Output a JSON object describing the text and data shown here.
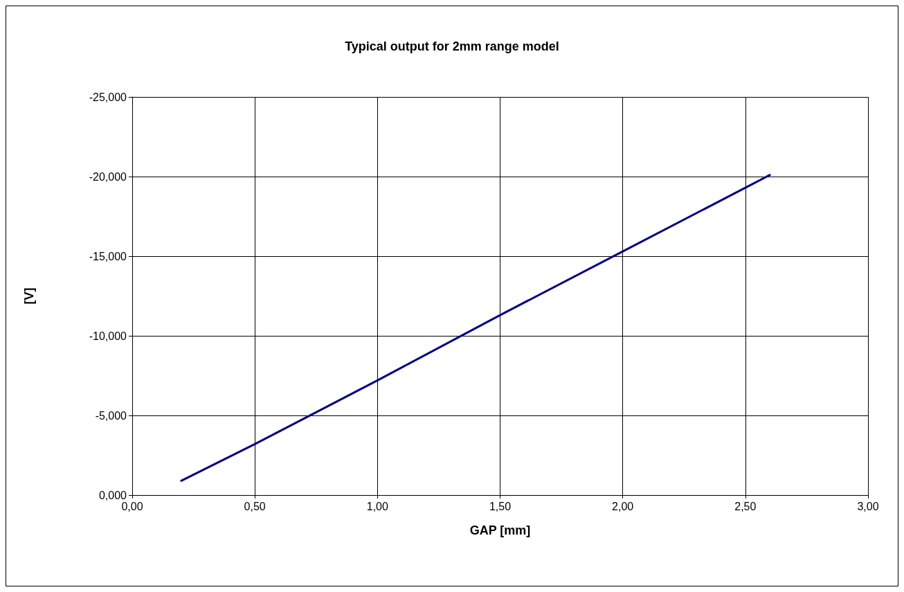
{
  "chart_data": {
    "type": "line",
    "title": "Typical output for 2mm range model",
    "xlabel": "GAP [mm]",
    "ylabel": "[V]",
    "x": [
      0.2,
      0.5,
      1.0,
      1.5,
      2.0,
      2.5,
      2.6
    ],
    "series": [
      {
        "color": "#000080",
        "values": [
          -0.9,
          -3.2,
          -7.2,
          -11.3,
          -15.3,
          -19.3,
          -20.1
        ]
      }
    ],
    "xlim": [
      0,
      3
    ],
    "xticks": [
      {
        "value": 0,
        "label": "0,00"
      },
      {
        "value": 0.5,
        "label": "0,50"
      },
      {
        "value": 1,
        "label": "1,00"
      },
      {
        "value": 1.5,
        "label": "1,50"
      },
      {
        "value": 2,
        "label": "2,00"
      },
      {
        "value": 2.5,
        "label": "2,50"
      },
      {
        "value": 3,
        "label": "3,00"
      }
    ],
    "ylim": [
      0,
      -25
    ],
    "yticks": [
      {
        "value": 0,
        "label": "0,000"
      },
      {
        "value": -5,
        "label": "-5,000"
      },
      {
        "value": -10,
        "label": "-10,000"
      },
      {
        "value": -15,
        "label": "-15,000"
      },
      {
        "value": -20,
        "label": "-20,000"
      },
      {
        "value": -25,
        "label": "-25,000"
      }
    ],
    "grid": true,
    "marker": "none",
    "line_style": "solid"
  }
}
